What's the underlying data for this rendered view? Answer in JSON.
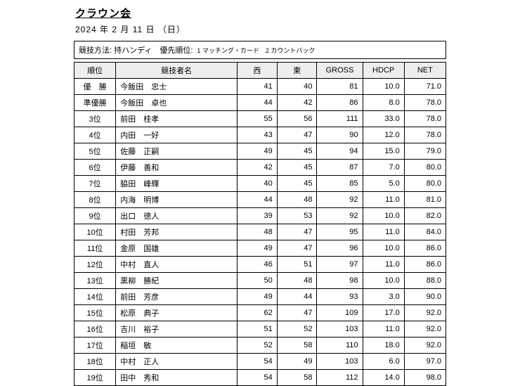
{
  "title": "クラウン会",
  "date": "2024 年 2 月 11 日 （日）",
  "method": {
    "label": "競技方法: 持ハンディ　優先順位:",
    "note": "1 マッチング・カード　2 カウントバック"
  },
  "columns": [
    "順位",
    "競技者名",
    "西",
    "東",
    "GROSS",
    "HDCP",
    "NET"
  ],
  "rows": [
    {
      "rank": "優　勝",
      "name": "今飯田　忠士",
      "west": "41",
      "east": "40",
      "gross": "81",
      "hdcp": "10.0",
      "net": "71.0"
    },
    {
      "rank": "準優勝",
      "name": "今飯田　卓也",
      "west": "44",
      "east": "42",
      "gross": "86",
      "hdcp": "8.0",
      "net": "78.0"
    },
    {
      "rank": "3位",
      "name": "前田　桂孝",
      "west": "55",
      "east": "56",
      "gross": "111",
      "hdcp": "33.0",
      "net": "78.0"
    },
    {
      "rank": "4位",
      "name": "内田　一好",
      "west": "43",
      "east": "47",
      "gross": "90",
      "hdcp": "12.0",
      "net": "78.0"
    },
    {
      "rank": "5位",
      "name": "佐藤　正嗣",
      "west": "49",
      "east": "45",
      "gross": "94",
      "hdcp": "15.0",
      "net": "79.0"
    },
    {
      "rank": "6位",
      "name": "伊藤　善和",
      "west": "42",
      "east": "45",
      "gross": "87",
      "hdcp": "7.0",
      "net": "80.0"
    },
    {
      "rank": "7位",
      "name": "脇田　峰輝",
      "west": "40",
      "east": "45",
      "gross": "85",
      "hdcp": "5.0",
      "net": "80.0"
    },
    {
      "rank": "8位",
      "name": "内海　明博",
      "west": "44",
      "east": "48",
      "gross": "92",
      "hdcp": "11.0",
      "net": "81.0"
    },
    {
      "rank": "9位",
      "name": "出口　徳人",
      "west": "39",
      "east": "53",
      "gross": "92",
      "hdcp": "10.0",
      "net": "82.0"
    },
    {
      "rank": "10位",
      "name": "村田　芳邦",
      "west": "48",
      "east": "47",
      "gross": "95",
      "hdcp": "11.0",
      "net": "84.0"
    },
    {
      "rank": "11位",
      "name": "金原　国雄",
      "west": "49",
      "east": "47",
      "gross": "96",
      "hdcp": "10.0",
      "net": "86.0"
    },
    {
      "rank": "12位",
      "name": "中村　直人",
      "west": "46",
      "east": "51",
      "gross": "97",
      "hdcp": "11.0",
      "net": "86.0"
    },
    {
      "rank": "13位",
      "name": "黒柳　勝紀",
      "west": "50",
      "east": "48",
      "gross": "98",
      "hdcp": "10.0",
      "net": "88.0"
    },
    {
      "rank": "14位",
      "name": "前田　芳彦",
      "west": "49",
      "east": "44",
      "gross": "93",
      "hdcp": "3.0",
      "net": "90.0"
    },
    {
      "rank": "15位",
      "name": "松原　典子",
      "west": "62",
      "east": "47",
      "gross": "109",
      "hdcp": "17.0",
      "net": "92.0"
    },
    {
      "rank": "16位",
      "name": "吉川　裕子",
      "west": "51",
      "east": "52",
      "gross": "103",
      "hdcp": "11.0",
      "net": "92.0"
    },
    {
      "rank": "17位",
      "name": "稲垣　敏",
      "west": "52",
      "east": "58",
      "gross": "110",
      "hdcp": "18.0",
      "net": "92.0"
    },
    {
      "rank": "18位",
      "name": "中村　正人",
      "west": "54",
      "east": "49",
      "gross": "103",
      "hdcp": "6.0",
      "net": "97.0"
    },
    {
      "rank": "19位",
      "name": "田中　秀和",
      "west": "54",
      "east": "58",
      "gross": "112",
      "hdcp": "14.0",
      "net": "98.0"
    }
  ]
}
